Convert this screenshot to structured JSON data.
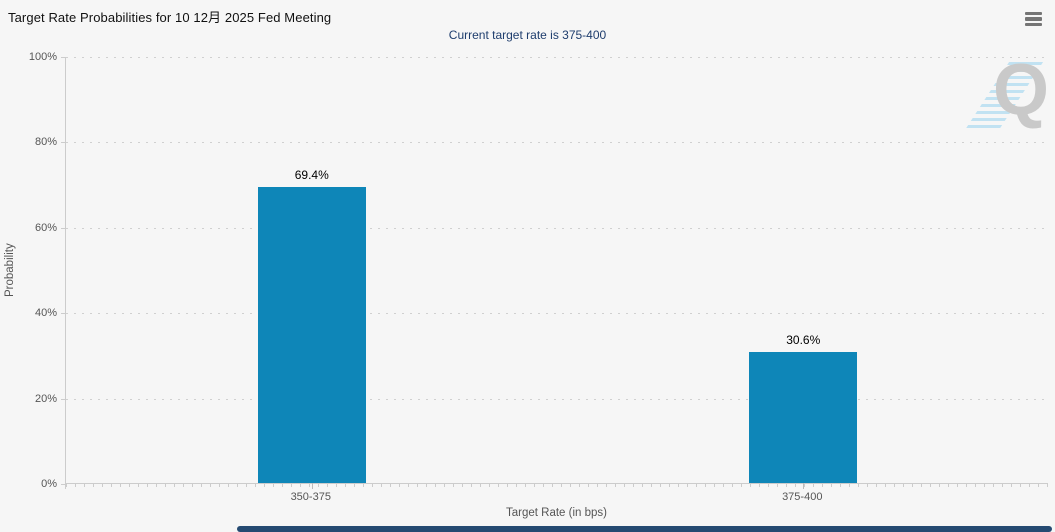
{
  "header": {
    "title": "Target Rate Probabilities for 10 12月 2025 Fed Meeting",
    "context_menu_icon": "hamburger-icon"
  },
  "chart_data": {
    "type": "bar",
    "title": "Target Rate Probabilities for 10 12月 2025 Fed Meeting",
    "subtitle": "Current target rate is 375-400",
    "categories": [
      "350-375",
      "375-400"
    ],
    "values": [
      69.4,
      30.6
    ],
    "value_labels": [
      "69.4%",
      "30.6%"
    ],
    "xlabel": "Target Rate (in bps)",
    "ylabel": "Probability",
    "ylim": [
      0,
      100
    ],
    "ytick_labels": [
      "100%",
      "80%",
      "60%",
      "40%",
      "20%",
      "0%"
    ],
    "grid": "dotted-horizontal",
    "legend": "none",
    "bar_color": "#0e86b8"
  },
  "watermark": {
    "letter": "Q"
  },
  "colors": {
    "background": "#f6f6f6",
    "bar": "#0e86b8",
    "title_text": "#111111",
    "subtitle_text": "#1e3d6d",
    "axis_text": "#555555",
    "axis_line": "#cccccc",
    "watermark_q": "#c9c9c9",
    "watermark_stripes": "#96d2ee",
    "scrollbar": "#254a72"
  }
}
